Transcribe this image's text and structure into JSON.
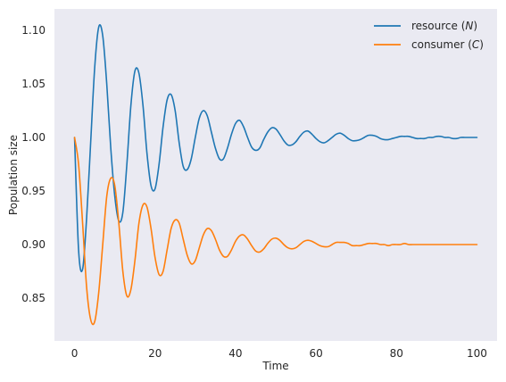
{
  "chart_data": {
    "type": "line",
    "title": "",
    "xlabel": "Time",
    "ylabel": "Population size",
    "xlim": [
      -5,
      105
    ],
    "ylim": [
      0.81,
      1.12
    ],
    "xticks": [
      0,
      20,
      40,
      60,
      80,
      100
    ],
    "xtick_labels": [
      "0",
      "20",
      "40",
      "60",
      "80",
      "100"
    ],
    "yticks": [
      0.85,
      0.9,
      0.95,
      1.0,
      1.05,
      1.1
    ],
    "ytick_labels": [
      "0.85",
      "0.90",
      "0.95",
      "1.00",
      "1.05",
      "1.10"
    ],
    "grid": false,
    "background": "#eaeaf2",
    "legend_position": "upper right",
    "series": [
      {
        "name": "resource (N)",
        "legend_main": "resource (",
        "legend_var": "N",
        "legend_close": ")",
        "color": "#1f77b4",
        "x": [
          0,
          1,
          2,
          3,
          4,
          5,
          6,
          7,
          8,
          9,
          10,
          11,
          12,
          13,
          14,
          15,
          16,
          17,
          18,
          19,
          20,
          21,
          22,
          23,
          24,
          25,
          26,
          27,
          28,
          29,
          30,
          31,
          32,
          33,
          34,
          35,
          36,
          37,
          38,
          39,
          40,
          41,
          42,
          43,
          44,
          45,
          46,
          47,
          48,
          49,
          50,
          51,
          52,
          53,
          54,
          55,
          56,
          57,
          58,
          59,
          60,
          61,
          62,
          63,
          64,
          65,
          66,
          67,
          68,
          69,
          70,
          71,
          72,
          73,
          74,
          75,
          76,
          77,
          78,
          79,
          80,
          81,
          82,
          83,
          84,
          85,
          86,
          87,
          88,
          89,
          90,
          91,
          92,
          93,
          94,
          95,
          96,
          97,
          98,
          99,
          100
        ],
        "y": [
          1.0,
          0.895,
          0.877,
          0.925,
          0.995,
          1.065,
          1.103,
          1.095,
          1.05,
          0.99,
          0.945,
          0.922,
          0.93,
          0.975,
          1.03,
          1.062,
          1.06,
          1.03,
          0.985,
          0.955,
          0.952,
          0.975,
          1.01,
          1.035,
          1.04,
          1.025,
          0.995,
          0.973,
          0.97,
          0.98,
          1.0,
          1.018,
          1.025,
          1.02,
          1.005,
          0.99,
          0.98,
          0.98,
          0.99,
          1.003,
          1.013,
          1.016,
          1.01,
          1.0,
          0.991,
          0.988,
          0.99,
          0.998,
          1.005,
          1.009,
          1.008,
          1.003,
          0.997,
          0.993,
          0.993,
          0.996,
          1.001,
          1.005,
          1.006,
          1.003,
          0.999,
          0.996,
          0.995,
          0.997,
          1.0,
          1.003,
          1.004,
          1.002,
          0.999,
          0.997,
          0.997,
          0.998,
          1.0,
          1.002,
          1.002,
          1.001,
          0.999,
          0.998,
          0.998,
          0.999,
          1.0,
          1.001,
          1.001,
          1.001,
          1.0,
          0.999,
          0.999,
          0.999,
          1.0,
          1.0,
          1.001,
          1.001,
          1.0,
          1.0,
          0.999,
          0.999,
          1.0,
          1.0,
          1.0,
          1.0,
          1.0
        ]
      },
      {
        "name": "consumer (C)",
        "legend_main": "consumer (",
        "legend_var": "C",
        "legend_close": ")",
        "color": "#ff7f0e",
        "x": [
          0,
          1,
          2,
          3,
          4,
          5,
          6,
          7,
          8,
          9,
          10,
          11,
          12,
          13,
          14,
          15,
          16,
          17,
          18,
          19,
          20,
          21,
          22,
          23,
          24,
          25,
          26,
          27,
          28,
          29,
          30,
          31,
          32,
          33,
          34,
          35,
          36,
          37,
          38,
          39,
          40,
          41,
          42,
          43,
          44,
          45,
          46,
          47,
          48,
          49,
          50,
          51,
          52,
          53,
          54,
          55,
          56,
          57,
          58,
          59,
          60,
          61,
          62,
          63,
          64,
          65,
          66,
          67,
          68,
          69,
          70,
          71,
          72,
          73,
          74,
          75,
          76,
          77,
          78,
          79,
          80,
          81,
          82,
          83,
          84,
          85,
          86,
          87,
          88,
          89,
          90,
          91,
          92,
          93,
          94,
          95,
          96,
          97,
          98,
          99,
          100
        ],
        "y": [
          1.0,
          0.975,
          0.92,
          0.86,
          0.83,
          0.828,
          0.855,
          0.9,
          0.945,
          0.962,
          0.955,
          0.92,
          0.875,
          0.852,
          0.858,
          0.885,
          0.92,
          0.937,
          0.935,
          0.915,
          0.888,
          0.872,
          0.875,
          0.895,
          0.915,
          0.923,
          0.92,
          0.905,
          0.89,
          0.882,
          0.885,
          0.897,
          0.909,
          0.915,
          0.913,
          0.905,
          0.895,
          0.889,
          0.889,
          0.895,
          0.903,
          0.908,
          0.909,
          0.905,
          0.899,
          0.894,
          0.893,
          0.896,
          0.901,
          0.905,
          0.906,
          0.904,
          0.9,
          0.897,
          0.896,
          0.897,
          0.9,
          0.903,
          0.904,
          0.903,
          0.901,
          0.899,
          0.898,
          0.898,
          0.9,
          0.902,
          0.902,
          0.902,
          0.901,
          0.899,
          0.899,
          0.899,
          0.9,
          0.901,
          0.901,
          0.901,
          0.9,
          0.9,
          0.899,
          0.9,
          0.9,
          0.9,
          0.901,
          0.9,
          0.9,
          0.9,
          0.9,
          0.9,
          0.9,
          0.9,
          0.9,
          0.9,
          0.9,
          0.9,
          0.9,
          0.9,
          0.9,
          0.9,
          0.9,
          0.9,
          0.9
        ]
      }
    ]
  }
}
